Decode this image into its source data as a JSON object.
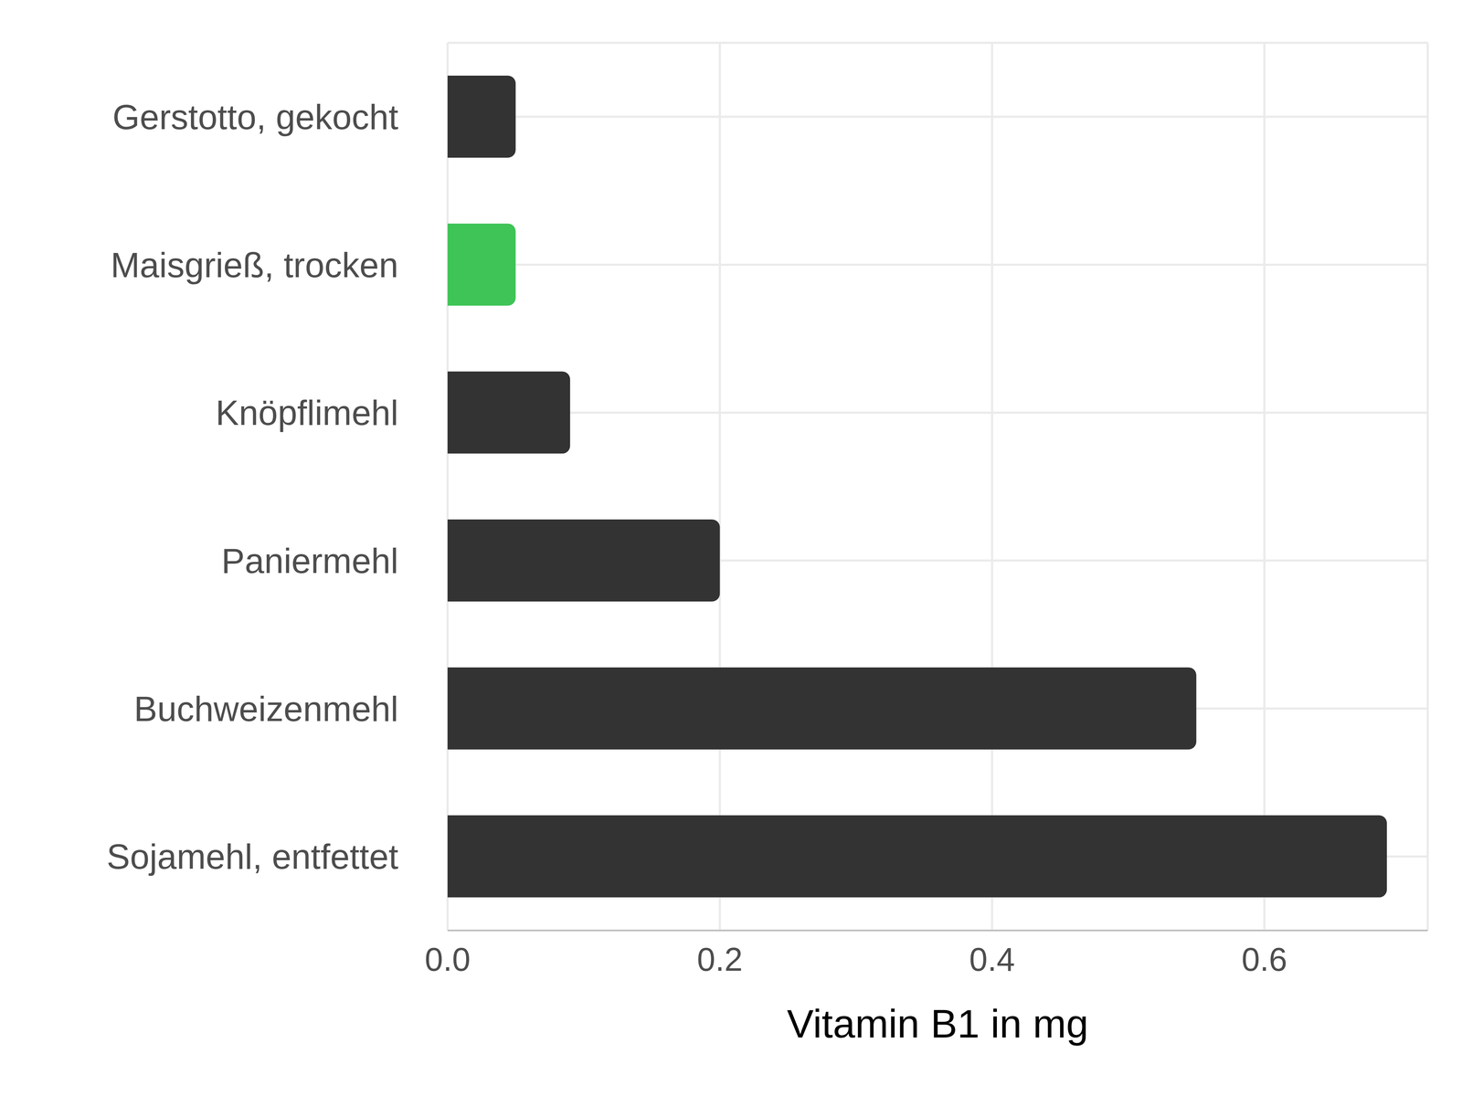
{
  "chart_data": {
    "type": "bar",
    "orientation": "horizontal",
    "x_label": "Vitamin B1 in mg",
    "categories": [
      "Gerstotto, gekocht",
      "Maisgrieß, trocken",
      "Knöpflimehl",
      "Paniermehl",
      "Buchweizenmehl",
      "Sojamehl, entfettet"
    ],
    "values": [
      0.05,
      0.05,
      0.09,
      0.2,
      0.55,
      0.69
    ],
    "colors": [
      "#333333",
      "#3fc457",
      "#333333",
      "#333333",
      "#333333",
      "#333333"
    ],
    "xlim": [
      0,
      0.72
    ],
    "xticks": [
      {
        "value": 0,
        "label": "0.0"
      },
      0.2,
      0.4,
      0.6
    ],
    "grid": true
  }
}
